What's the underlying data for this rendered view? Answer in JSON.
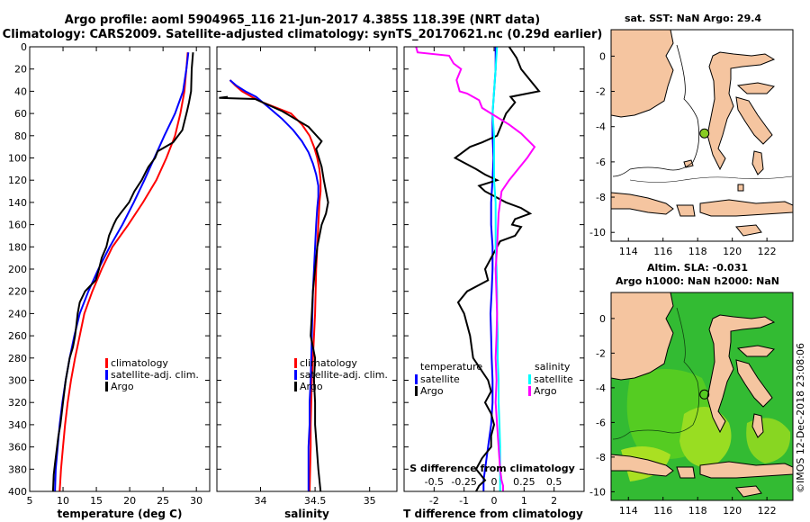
{
  "chart_data": {
    "title_lines": [
      "Argo profile: aoml 5904965_116 21-Jun-2017 4.385S 118.39E (NRT data)",
      "Climatology: CARS2009. Satellite-adjusted climatology: synTS_20170621.nc (0.29d earlier)"
    ],
    "temperature_panel": {
      "type": "line",
      "xlabel": "temperature (deg C)",
      "xlim": [
        5,
        32
      ],
      "ylim": [
        0,
        400
      ],
      "xticks": [
        "5",
        "10",
        "15",
        "20",
        "25",
        "30"
      ],
      "yticks": [
        "0",
        "20",
        "40",
        "60",
        "80",
        "100",
        "120",
        "140",
        "160",
        "180",
        "200",
        "220",
        "240",
        "260",
        "280",
        "300",
        "320",
        "340",
        "360",
        "380",
        "400"
      ],
      "legend": [
        "climatology",
        "satellite-adj. clim.",
        "Argo"
      ],
      "series": [
        {
          "name": "climatology",
          "color": "#ff0000",
          "x": [
            28.7,
            28.5,
            28.2,
            27.6,
            26.8,
            25.5,
            24.0,
            22.0,
            19.8,
            17.4,
            15.8,
            14.4,
            13.2,
            12.5,
            11.8,
            11.2,
            10.7,
            10.3,
            10.0,
            9.7,
            9.5
          ],
          "y": [
            5,
            20,
            40,
            60,
            80,
            100,
            120,
            140,
            160,
            180,
            200,
            220,
            240,
            260,
            280,
            300,
            320,
            340,
            360,
            380,
            400
          ]
        },
        {
          "name": "satellite-adj. clim.",
          "color": "#0000ff",
          "x": [
            28.8,
            28.5,
            28.0,
            26.8,
            25.2,
            23.7,
            22.2,
            20.6,
            18.9,
            17.0,
            15.3,
            13.8,
            12.5,
            11.7,
            11.0,
            10.4,
            9.9,
            9.5,
            9.2,
            8.9,
            8.8
          ],
          "y": [
            5,
            20,
            40,
            60,
            80,
            100,
            120,
            140,
            160,
            180,
            200,
            220,
            240,
            260,
            280,
            300,
            320,
            340,
            360,
            380,
            400
          ]
        },
        {
          "name": "Argo",
          "color": "#000000",
          "x": [
            29.5,
            29.3,
            29.2,
            28.9,
            28.6,
            27.9,
            26.5,
            24.2,
            23.8,
            22.8,
            22.3,
            21.8,
            20.7,
            19.9,
            18.6,
            18.0,
            17.6,
            16.9,
            16.5,
            15.8,
            15.4,
            14.9,
            14.1,
            13.3,
            12.5,
            12.2,
            12.0,
            11.8,
            11.5,
            11.0,
            10.4,
            10.0,
            9.6,
            9.3,
            9.1,
            8.8,
            8.6,
            8.5
          ],
          "y": [
            5,
            20,
            40,
            50,
            58,
            75,
            86,
            94,
            100,
            108,
            114,
            120,
            130,
            140,
            150,
            155,
            160,
            170,
            180,
            190,
            200,
            210,
            215,
            220,
            230,
            240,
            250,
            260,
            270,
            280,
            300,
            320,
            340,
            350,
            360,
            375,
            385,
            400
          ]
        }
      ]
    },
    "salinity_panel": {
      "type": "line",
      "xlabel": "salinity",
      "xlim": [
        33.6,
        35.25
      ],
      "ylim": [
        0,
        400
      ],
      "xticks": [
        "34",
        "34.5",
        "35"
      ],
      "legend": [
        "climatology",
        "satellite-adj. clim.",
        "Argo"
      ],
      "series": [
        {
          "name": "climatology",
          "color": "#ff0000",
          "x": [
            33.72,
            33.77,
            33.83,
            33.92,
            34.02,
            34.15,
            34.28,
            34.38,
            34.45,
            34.49,
            34.52,
            34.54,
            34.55,
            34.55,
            34.54,
            34.53,
            34.52,
            34.51,
            34.5,
            34.49,
            34.48,
            34.47,
            34.46,
            34.46,
            34.45
          ],
          "y": [
            30,
            35,
            40,
            45,
            50,
            55,
            60,
            70,
            80,
            90,
            100,
            110,
            120,
            130,
            140,
            160,
            180,
            200,
            240,
            260,
            280,
            300,
            340,
            360,
            400
          ]
        },
        {
          "name": "satellite-adj. clim.",
          "color": "#0000ff",
          "x": [
            33.72,
            33.78,
            33.86,
            33.96,
            34.08,
            34.2,
            34.3,
            34.38,
            34.44,
            34.48,
            34.51,
            34.53,
            34.53,
            34.52,
            34.51,
            34.5,
            34.49,
            34.48,
            34.47,
            34.46,
            34.45,
            34.45,
            34.44,
            34.44
          ],
          "y": [
            30,
            35,
            40,
            45,
            55,
            65,
            75,
            85,
            95,
            105,
            115,
            125,
            135,
            145,
            160,
            180,
            200,
            220,
            260,
            300,
            320,
            340,
            360,
            400
          ]
        },
        {
          "name": "Argo",
          "color": "#000000",
          "x": [
            33.7,
            33.62,
            33.95,
            34.2,
            34.32,
            34.44,
            34.56,
            34.51,
            34.56,
            34.58,
            34.6,
            34.62,
            34.6,
            34.56,
            34.52,
            34.5,
            34.48,
            34.47,
            34.46,
            34.5,
            34.49,
            34.5,
            34.5,
            34.53,
            34.55
          ],
          "y": [
            45,
            46,
            47,
            58,
            65,
            72,
            85,
            92,
            108,
            120,
            130,
            140,
            150,
            160,
            180,
            200,
            220,
            240,
            260,
            280,
            300,
            320,
            340,
            380,
            400
          ]
        }
      ]
    },
    "difference_panel": {
      "type": "line",
      "xlabel": "T difference from climatology",
      "top_xlabel": "S difference from climatology",
      "xlim": [
        -3,
        3
      ],
      "ylim": [
        0,
        400
      ],
      "xticks": [
        "-2",
        "-1",
        "0",
        "1",
        "2"
      ],
      "top_ticks": [
        "-0.5",
        "-0.25",
        "0",
        "0.25",
        "0.5"
      ],
      "legend_left_title": "temperature",
      "legend_right_title": "salinity",
      "legend_left": [
        "satellite",
        "Argo"
      ],
      "legend_right": [
        "satellite",
        "Argo"
      ],
      "series": [
        {
          "name": "temperature satellite",
          "color": "#0000ff",
          "x": [
            0.05,
            0.05,
            0.0,
            -0.05,
            -0.05,
            -0.02,
            -0.05,
            -0.1,
            -0.1,
            -0.05,
            -0.05,
            -0.08,
            -0.12,
            -0.1,
            -0.08,
            -0.05,
            -0.05,
            -0.1,
            -0.2,
            -0.3,
            -0.35,
            -0.35
          ],
          "y": [
            0,
            20,
            40,
            60,
            80,
            100,
            120,
            140,
            160,
            180,
            200,
            220,
            240,
            260,
            280,
            300,
            320,
            340,
            360,
            380,
            390,
            400
          ]
        },
        {
          "name": "temperature Argo",
          "color": "#000000",
          "x": [
            0.5,
            0.75,
            0.9,
            1.5,
            0.55,
            0.7,
            0.4,
            0.1,
            -0.4,
            -0.8,
            -1.3,
            -0.6,
            -0.3,
            0.1,
            -0.5,
            -0.3,
            0.4,
            0.9,
            1.2,
            0.7,
            0.6,
            0.9,
            0.7,
            0.2,
            0.1,
            -0.1,
            -0.3,
            -0.2,
            -0.9,
            -1.2,
            -1.0,
            -0.9,
            -0.8,
            -0.7,
            -0.2,
            -0.1,
            -0.3,
            -0.1,
            0.0,
            -0.1,
            -0.1,
            -0.4,
            -0.6,
            -0.3,
            -0.5,
            -0.6
          ],
          "y": [
            0,
            10,
            20,
            40,
            45,
            50,
            60,
            80,
            86,
            90,
            100,
            110,
            115,
            120,
            125,
            130,
            140,
            145,
            150,
            155,
            160,
            162,
            170,
            175,
            180,
            190,
            200,
            210,
            220,
            230,
            240,
            250,
            260,
            280,
            300,
            310,
            320,
            330,
            340,
            350,
            360,
            370,
            380,
            390,
            395,
            400
          ]
        },
        {
          "name": "salinity satellite",
          "color": "#00ffff",
          "x": [
            0.1,
            0.05,
            0.0,
            -0.05,
            0.0,
            0.0,
            0.0,
            0.05,
            0.05,
            0.05,
            0.08,
            0.1,
            0.1,
            0.12,
            0.12,
            0.15,
            0.15,
            0.18,
            0.2,
            0.2,
            0.2
          ],
          "y": [
            0,
            20,
            40,
            60,
            80,
            100,
            120,
            140,
            160,
            180,
            200,
            220,
            240,
            260,
            280,
            300,
            320,
            340,
            360,
            380,
            400
          ]
        },
        {
          "name": "salinity Argo",
          "color": "#ff00ff",
          "x": [
            -2.6,
            -2.55,
            -1.5,
            -1.35,
            -1.1,
            -1.25,
            -1.15,
            -0.9,
            -0.7,
            -0.5,
            -0.4,
            -0.1,
            0.5,
            0.9,
            1.35,
            1.1,
            0.8,
            0.5,
            0.25,
            0.15,
            0.1,
            0.05,
            0.1,
            0.08,
            0.05,
            0.08,
            0.05,
            0.1,
            0.15,
            0.2,
            0.25,
            0.3,
            0.3
          ],
          "y": [
            0,
            5,
            8,
            15,
            20,
            30,
            40,
            42,
            45,
            48,
            55,
            60,
            70,
            78,
            90,
            100,
            110,
            120,
            130,
            150,
            180,
            200,
            240,
            260,
            280,
            300,
            320,
            340,
            360,
            380,
            390,
            395,
            400
          ]
        }
      ]
    },
    "sst_map": {
      "title": "sat. SST: NaN Argo: 29.4",
      "type": "map",
      "xlim": [
        113,
        123.5
      ],
      "ylim": [
        -10.5,
        1.5
      ],
      "xticks": [
        "114",
        "116",
        "118",
        "120",
        "122"
      ],
      "yticks": [
        "0",
        "-2",
        "-4",
        "-6",
        "-8",
        "-10"
      ],
      "marker": {
        "lon": 118.39,
        "lat": -4.385,
        "color": "#88cc22"
      }
    },
    "sla_map": {
      "title_lines": [
        "Altim. SLA: -0.031",
        "Argo h1000: NaN h2000: NaN"
      ],
      "type": "map",
      "xlim": [
        113,
        123.5
      ],
      "ylim": [
        -10.5,
        1.5
      ],
      "xticks": [
        "114",
        "116",
        "118",
        "120",
        "122"
      ],
      "yticks": [
        "0",
        "-2",
        "-4",
        "-6",
        "-8",
        "-10"
      ],
      "marker": {
        "lon": 118.39,
        "lat": -4.385
      }
    },
    "credit": "©IMOS 12-Dec-2018 23:08:06"
  }
}
